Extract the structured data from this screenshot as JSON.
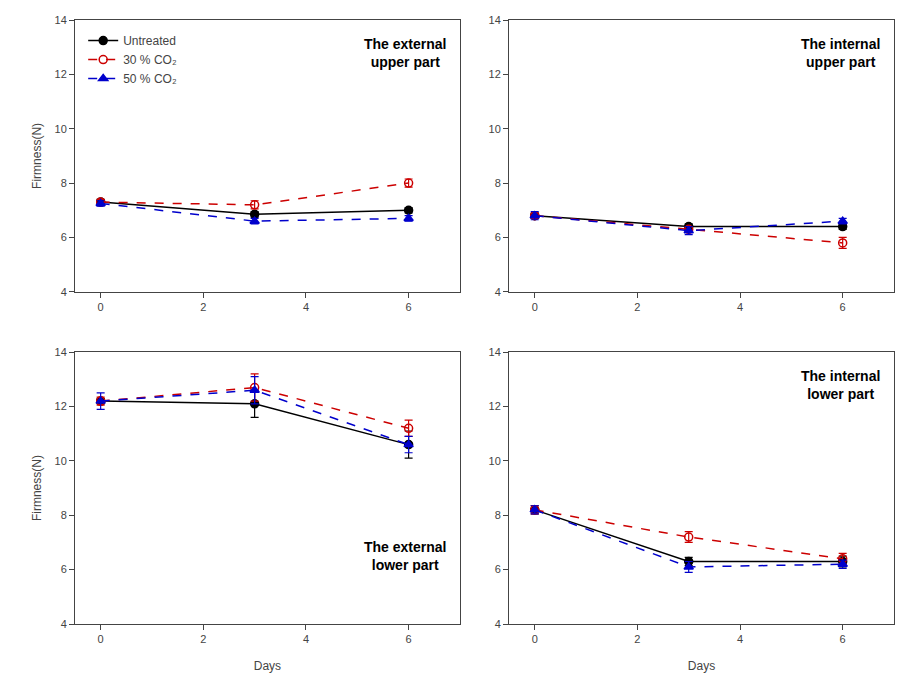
{
  "chart_data": [
    {
      "type": "line",
      "title": "The external\nupper part",
      "x": [
        0,
        3,
        6
      ],
      "series": [
        {
          "name": "Untreated",
          "color": "#000000",
          "marker": "circle",
          "line_style": "solid",
          "values": [
            7.3,
            6.85,
            7.0
          ],
          "errors": [
            0.1,
            0.1,
            0.1
          ]
        },
        {
          "name": "30 % CO₂",
          "color": "#cc0000",
          "marker": "circle-open",
          "line_style": "dash",
          "values": [
            7.3,
            7.2,
            8.0
          ],
          "errors": [
            0.1,
            0.15,
            0.15
          ]
        },
        {
          "name": "50 % CO₂",
          "color": "#0000cc",
          "marker": "triangle-up",
          "line_style": "dash",
          "values": [
            7.25,
            6.6,
            6.7
          ],
          "errors": [
            0.1,
            0.1,
            0.1
          ]
        }
      ],
      "xlim": [
        -0.5,
        7
      ],
      "xticks": [
        0,
        2,
        4,
        6
      ],
      "ylim": [
        4,
        14
      ],
      "yticks": [
        4,
        6,
        8,
        10,
        12,
        14
      ],
      "ylabel": "Firmness(N)",
      "legend": "upper left",
      "grid": false
    },
    {
      "type": "line",
      "title": "The internal\nupper part",
      "x": [
        0,
        3,
        6
      ],
      "series": [
        {
          "name": "Untreated",
          "color": "#000000",
          "marker": "circle",
          "line_style": "solid",
          "values": [
            6.8,
            6.4,
            6.4
          ],
          "errors": [
            0.1,
            0.1,
            0.1
          ]
        },
        {
          "name": "30 % CO₂",
          "color": "#cc0000",
          "marker": "circle-open",
          "line_style": "dash",
          "values": [
            6.8,
            6.3,
            5.8
          ],
          "errors": [
            0.1,
            0.1,
            0.2
          ]
        },
        {
          "name": "50 % CO₂",
          "color": "#0000cc",
          "marker": "triangle-up",
          "line_style": "dash",
          "values": [
            6.8,
            6.25,
            6.6
          ],
          "errors": [
            0.15,
            0.15,
            0.1
          ]
        }
      ],
      "xlim": [
        -0.5,
        7
      ],
      "xticks": [
        0,
        2,
        4,
        6
      ],
      "ylim": [
        4,
        14
      ],
      "yticks": [
        4,
        6,
        8,
        10,
        12,
        14
      ],
      "grid": false
    },
    {
      "type": "line",
      "title": "The external\nlower part",
      "x": [
        0,
        3,
        6
      ],
      "series": [
        {
          "name": "Untreated",
          "color": "#000000",
          "marker": "circle",
          "line_style": "solid",
          "values": [
            12.2,
            12.1,
            10.6
          ],
          "errors": [
            0.1,
            0.5,
            0.5
          ]
        },
        {
          "name": "30 % CO₂",
          "color": "#cc0000",
          "marker": "circle-open",
          "line_style": "dash",
          "values": [
            12.2,
            12.7,
            11.2
          ],
          "errors": [
            0.15,
            0.5,
            0.3
          ]
        },
        {
          "name": "50 % CO₂",
          "color": "#0000cc",
          "marker": "triangle-up",
          "line_style": "dash",
          "values": [
            12.2,
            12.6,
            10.6
          ],
          "errors": [
            0.3,
            0.5,
            0.3
          ]
        }
      ],
      "xlim": [
        -0.5,
        7
      ],
      "xticks": [
        0,
        2,
        4,
        6
      ],
      "ylim": [
        4,
        14
      ],
      "yticks": [
        4,
        6,
        8,
        10,
        12,
        14
      ],
      "xlabel": "Days",
      "ylabel": "Firmness(N)",
      "grid": false
    },
    {
      "type": "line",
      "title": "The internal\nlower part",
      "x": [
        0,
        3,
        6
      ],
      "series": [
        {
          "name": "Untreated",
          "color": "#000000",
          "marker": "circle",
          "line_style": "solid",
          "values": [
            8.2,
            6.3,
            6.3
          ],
          "errors": [
            0.15,
            0.15,
            0.2
          ]
        },
        {
          "name": "30 % CO₂",
          "color": "#cc0000",
          "marker": "circle-open",
          "line_style": "dash",
          "values": [
            8.2,
            7.2,
            6.4
          ],
          "errors": [
            0.15,
            0.2,
            0.2
          ]
        },
        {
          "name": "50 % CO₂",
          "color": "#0000cc",
          "marker": "triangle-up",
          "line_style": "dash",
          "values": [
            8.2,
            6.1,
            6.2
          ],
          "errors": [
            0.15,
            0.2,
            0.15
          ]
        }
      ],
      "xlim": [
        -0.5,
        7
      ],
      "xticks": [
        0,
        2,
        4,
        6
      ],
      "ylim": [
        4,
        14
      ],
      "yticks": [
        4,
        6,
        8,
        10,
        12,
        14
      ],
      "xlabel": "Days",
      "grid": false
    }
  ]
}
